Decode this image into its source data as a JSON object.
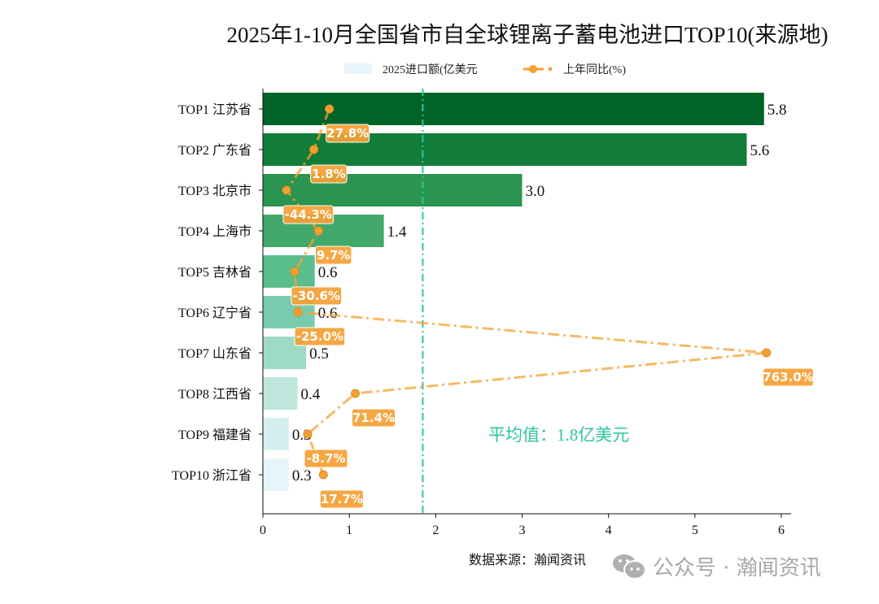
{
  "chart_data": {
    "type": "bar",
    "orientation": "horizontal",
    "title": "2025年1-10月全国省市自全球锂离子蓄电池进口TOP10(来源地)",
    "categories": [
      "TOP1 江苏省",
      "TOP2 广东省",
      "TOP3 北京市",
      "TOP4 上海市",
      "TOP5 吉林省",
      "TOP6 辽宁省",
      "TOP7 山东省",
      "TOP8 江西省",
      "TOP9 福建省",
      "TOP10 浙江省"
    ],
    "series": [
      {
        "name": "2025进口额(亿美元",
        "type": "bar",
        "values": [
          5.8,
          5.6,
          3.0,
          1.4,
          0.6,
          0.6,
          0.5,
          0.4,
          0.3,
          0.3
        ],
        "colors": [
          "#006428",
          "#117d38",
          "#2a9450",
          "#43a96a",
          "#5abd8c",
          "#79cbad",
          "#9fdac6",
          "#bfe7de",
          "#d6efee",
          "#e6f5f9"
        ]
      },
      {
        "name": "上年同比(%)",
        "type": "line",
        "values": [
          27.8,
          1.8,
          -44.3,
          9.7,
          -30.6,
          -25.0,
          763.0,
          71.4,
          -8.7,
          17.7
        ],
        "labels": [
          "27.8%",
          "1.8%",
          "-44.3%",
          "9.7%",
          "-30.6%",
          "-25.0%",
          "763.0%",
          "71.4%",
          "-8.7%",
          "17.7%"
        ],
        "color": "#f5a033",
        "xlim": [
          -84,
          788
        ]
      }
    ],
    "xlim": [
      0,
      6.1
    ],
    "xticks": [
      "0",
      "1",
      "2",
      "3",
      "4",
      "5",
      "6"
    ],
    "average": {
      "value": 1.85,
      "label": "平均值：1.8亿美元",
      "color": "#2ec4a0"
    },
    "grid": false,
    "legend_placement": "top-center",
    "source": "数据来源：瀚闻资讯"
  },
  "watermark": "公众号 · 瀚闻资讯"
}
